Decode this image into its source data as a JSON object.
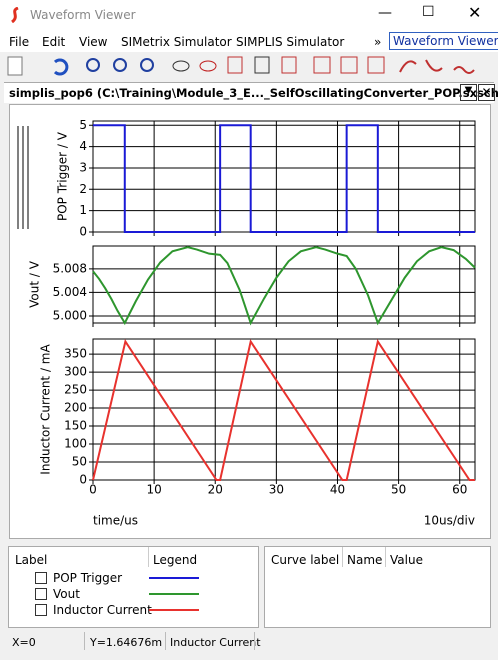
{
  "window": {
    "title": "Waveform Viewer"
  },
  "menu": {
    "items": [
      "File",
      "Edit",
      "View",
      "SIMetrix Simulator",
      "SIMPLIS Simulator"
    ],
    "more": "»",
    "dropdown": "Waveform Viewer"
  },
  "tab": {
    "title": "simplis_pop6 (C:\\Training\\Module_3_E..._SelfOscillatingConverter_POP.sxsch)"
  },
  "chart_data": [
    {
      "type": "line",
      "ylabel": "POP Trigger / V",
      "x": [
        0,
        5.2,
        5.2,
        20.8,
        20.8,
        25.8,
        25.8,
        41.5,
        41.5,
        46.6,
        46.6,
        62.5
      ],
      "series": [
        {
          "name": "POP Trigger",
          "color": "#1a1ad6",
          "values": [
            5,
            5,
            0,
            0,
            5,
            5,
            0,
            0,
            5,
            5,
            0,
            0
          ]
        }
      ],
      "xlim": [
        0,
        62.5
      ],
      "xticks": [
        0,
        10,
        20,
        30,
        40,
        50,
        60
      ],
      "ylim": [
        0,
        5.2
      ],
      "yticks": [
        0,
        1,
        2,
        3,
        4,
        5
      ],
      "grid": true
    },
    {
      "type": "line",
      "ylabel": "Vout / V",
      "x": [
        0,
        1,
        2,
        3,
        4,
        5.2,
        7,
        9,
        11,
        13,
        15.5,
        17,
        19,
        20.8,
        22,
        24,
        25.8,
        28,
        30,
        32,
        34,
        36.5,
        38,
        40,
        41.5,
        43,
        45,
        46.6,
        49,
        51,
        53,
        55,
        57,
        59,
        61,
        62.5
      ],
      "series": [
        {
          "name": "Vout",
          "color": "#2e962e",
          "values": [
            5.0076,
            5.0063,
            5.0047,
            5.0029,
            5.0009,
            4.9988,
            5.0025,
            5.0062,
            5.0091,
            5.011,
            5.0117,
            5.0113,
            5.0106,
            5.0104,
            5.009,
            5.0044,
            4.9988,
            5.003,
            5.0065,
            5.0093,
            5.011,
            5.0117,
            5.0113,
            5.0106,
            5.0102,
            5.008,
            5.0035,
            4.9988,
            5.003,
            5.0065,
            5.0093,
            5.011,
            5.0117,
            5.0112,
            5.0097,
            5.0082
          ]
        }
      ],
      "xlim": [
        0,
        62.5
      ],
      "xticks": [
        0,
        10,
        20,
        30,
        40,
        50,
        60
      ],
      "ylim": [
        4.9988,
        5.0119
      ],
      "yticks": [
        {
          "value": 5.0,
          "label": "5.000"
        },
        {
          "value": 5.004,
          "label": "5.004"
        },
        {
          "value": 5.008,
          "label": "5.008"
        }
      ],
      "grid": true
    },
    {
      "type": "line",
      "ylabel": "Inductor Current / mA",
      "xlabel": "time/us",
      "x_scale": "10us/div",
      "x": [
        0,
        5.3,
        20.2,
        20.8,
        25.8,
        40.8,
        41.5,
        46.6,
        61.6,
        62.5
      ],
      "series": [
        {
          "name": "Inductor Current",
          "color": "#e8322e",
          "values": [
            0,
            385,
            0,
            0,
            385,
            0,
            0,
            385,
            0,
            0
          ]
        }
      ],
      "xlim": [
        0,
        62.5
      ],
      "xticks": [
        0,
        10,
        20,
        30,
        40,
        50,
        60
      ],
      "ylim": [
        0,
        392
      ],
      "yticks": [
        0,
        50,
        100,
        150,
        200,
        250,
        300,
        350
      ],
      "grid": true
    }
  ],
  "legend_panel": {
    "headers": [
      "Label",
      "Legend"
    ]
  },
  "curve_panel": {
    "headers": [
      "Curve label",
      "Name",
      "Value"
    ]
  },
  "status": [
    "X=0",
    "Y=1.64676m",
    "Inductor Current"
  ]
}
